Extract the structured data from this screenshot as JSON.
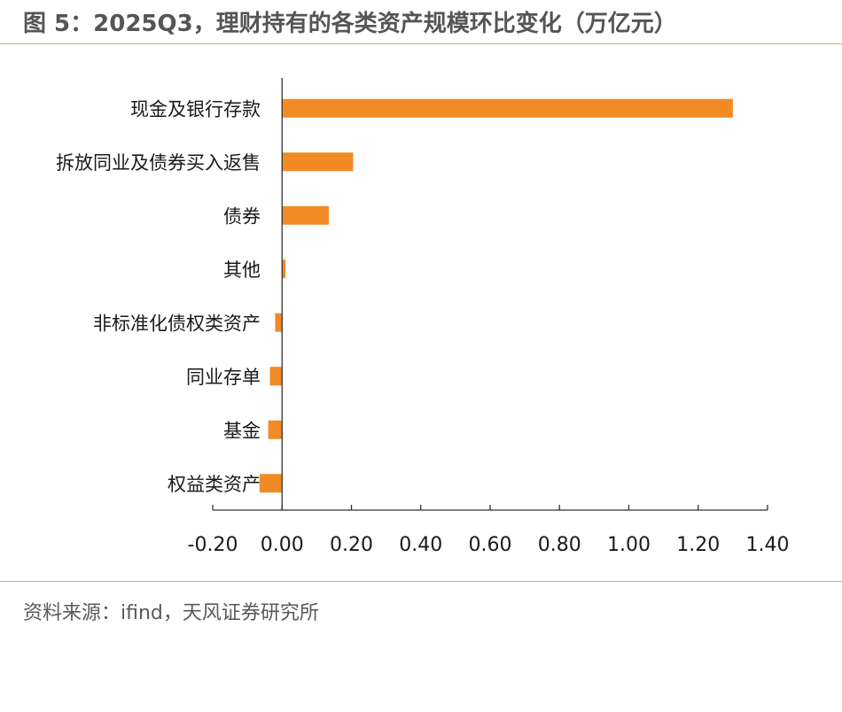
{
  "header": {
    "title": "图 5：2025Q3，理财持有的各类资产规模环比变化（万亿元）"
  },
  "footer": {
    "source": "资料来源：ifind，天风证券研究所"
  },
  "colors": {
    "bar": "#f28a26",
    "axis": "#333333",
    "rule": "#c9b07a"
  },
  "chart_data": {
    "type": "bar",
    "orientation": "horizontal",
    "categories": [
      "现金及银行存款",
      "拆放同业及债券买入返售",
      "债券",
      "其他",
      "非标准化债权类资产",
      "同业存单",
      "基金",
      "权益类资产"
    ],
    "values": [
      1.3,
      0.205,
      0.135,
      0.01,
      -0.02,
      -0.035,
      -0.04,
      -0.065
    ],
    "xlim": [
      -0.2,
      1.4
    ],
    "xticks": [
      "-0.20",
      "0.00",
      "0.20",
      "0.40",
      "0.60",
      "0.80",
      "1.00",
      "1.20",
      "1.40"
    ],
    "title": "",
    "xlabel": "",
    "ylabel": "",
    "grid": false,
    "legend": "none"
  }
}
